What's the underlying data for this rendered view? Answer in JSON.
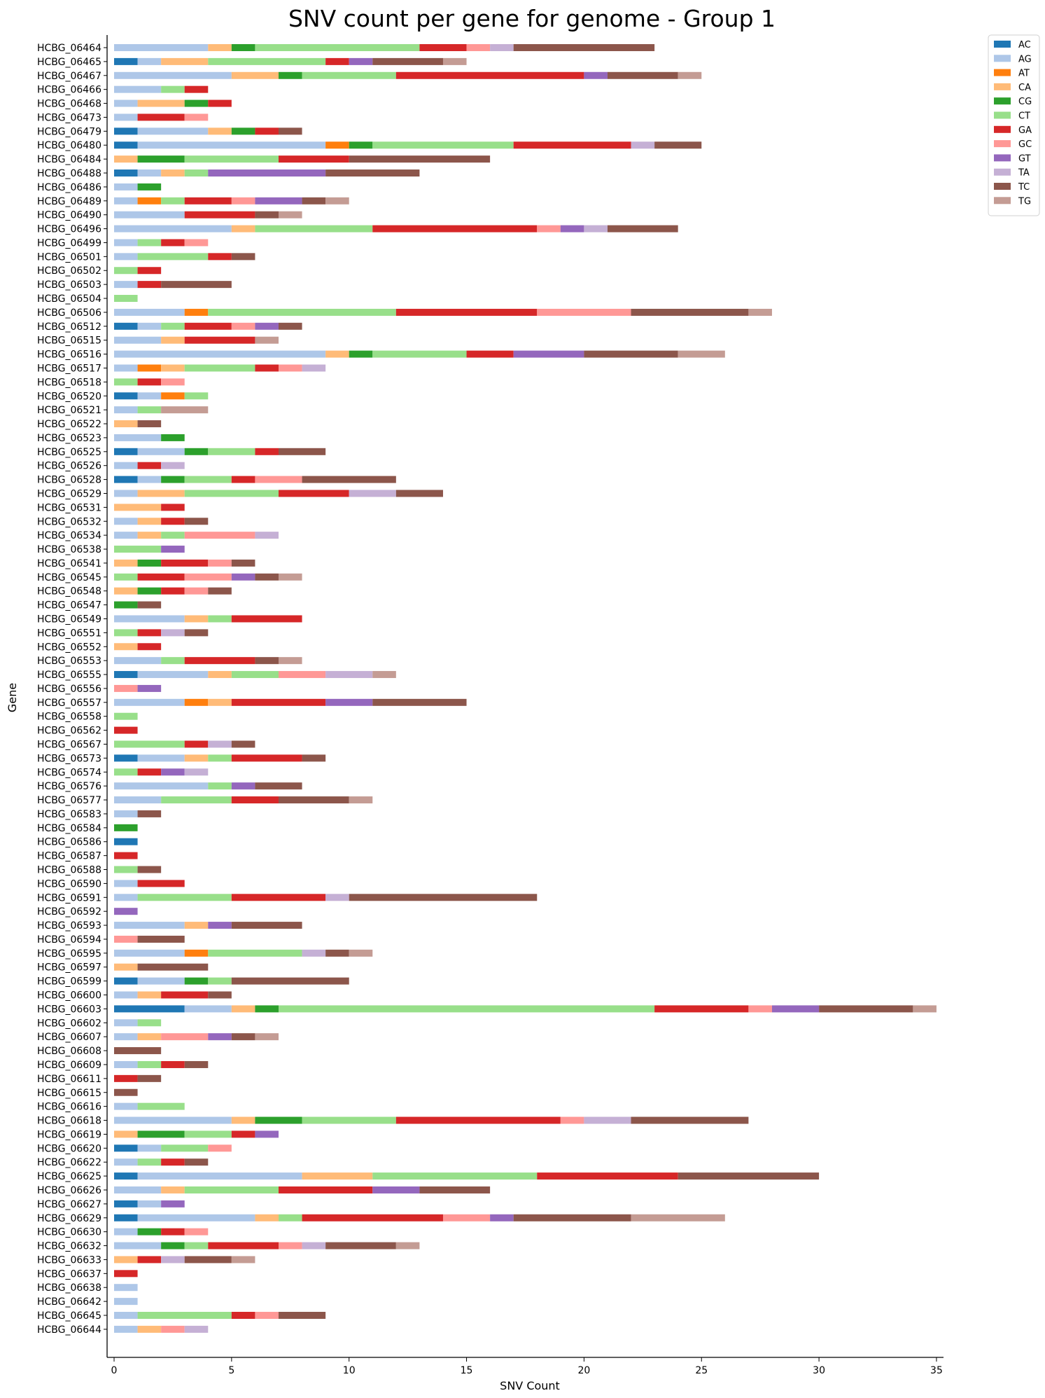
{
  "chart_data": {
    "type": "bar",
    "orientation": "horizontal",
    "stacked": true,
    "title": "SNV count per gene for genome - Group 1",
    "xlabel": "SNV Count",
    "ylabel": "Gene",
    "xlim": [
      0,
      35
    ],
    "xticks": [
      0,
      5,
      10,
      15,
      20,
      25,
      30,
      35
    ],
    "legend_position": "top-right (outside)",
    "grid": false,
    "categories": [
      "HCBG_06464",
      "HCBG_06465",
      "HCBG_06467",
      "HCBG_06466",
      "HCBG_06468",
      "HCBG_06473",
      "HCBG_06479",
      "HCBG_06480",
      "HCBG_06484",
      "HCBG_06488",
      "HCBG_06486",
      "HCBG_06489",
      "HCBG_06490",
      "HCBG_06496",
      "HCBG_06499",
      "HCBG_06501",
      "HCBG_06502",
      "HCBG_06503",
      "HCBG_06504",
      "HCBG_06506",
      "HCBG_06512",
      "HCBG_06515",
      "HCBG_06516",
      "HCBG_06517",
      "HCBG_06518",
      "HCBG_06520",
      "HCBG_06521",
      "HCBG_06522",
      "HCBG_06523",
      "HCBG_06525",
      "HCBG_06526",
      "HCBG_06528",
      "HCBG_06529",
      "HCBG_06531",
      "HCBG_06532",
      "HCBG_06534",
      "HCBG_06538",
      "HCBG_06541",
      "HCBG_06545",
      "HCBG_06548",
      "HCBG_06547",
      "HCBG_06549",
      "HCBG_06551",
      "HCBG_06552",
      "HCBG_06553",
      "HCBG_06555",
      "HCBG_06556",
      "HCBG_06557",
      "HCBG_06558",
      "HCBG_06562",
      "HCBG_06567",
      "HCBG_06573",
      "HCBG_06574",
      "HCBG_06576",
      "HCBG_06577",
      "HCBG_06583",
      "HCBG_06584",
      "HCBG_06586",
      "HCBG_06587",
      "HCBG_06588",
      "HCBG_06590",
      "HCBG_06591",
      "HCBG_06592",
      "HCBG_06593",
      "HCBG_06594",
      "HCBG_06595",
      "HCBG_06597",
      "HCBG_06599",
      "HCBG_06600",
      "HCBG_06603",
      "HCBG_06602",
      "HCBG_06607",
      "HCBG_06608",
      "HCBG_06609",
      "HCBG_06611",
      "HCBG_06615",
      "HCBG_06616",
      "HCBG_06618",
      "HCBG_06619",
      "HCBG_06620",
      "HCBG_06622",
      "HCBG_06625",
      "HCBG_06626",
      "HCBG_06627",
      "HCBG_06629",
      "HCBG_06630",
      "HCBG_06632",
      "HCBG_06633",
      "HCBG_06637",
      "HCBG_06638",
      "HCBG_06642",
      "HCBG_06645",
      "HCBG_06644"
    ],
    "series": [
      {
        "name": "AC",
        "color": "#1f77b4",
        "values": [
          0,
          1,
          0,
          0,
          0,
          0,
          1,
          1,
          0,
          1,
          0,
          0,
          0,
          0,
          0,
          0,
          0,
          0,
          0,
          0,
          1,
          0,
          0,
          0,
          0,
          1,
          0,
          0,
          0,
          1,
          0,
          1,
          0,
          0,
          0,
          0,
          0,
          0,
          0,
          0,
          0,
          0,
          0,
          0,
          0,
          1,
          0,
          0,
          0,
          0,
          0,
          1,
          0,
          0,
          0,
          0,
          0,
          1,
          0,
          0,
          0,
          0,
          0,
          0,
          0,
          0,
          0,
          1,
          0,
          3,
          0,
          0,
          0,
          0,
          0,
          0,
          0,
          0,
          0,
          1,
          0,
          1,
          0,
          1,
          1,
          0,
          0,
          0,
          0,
          0,
          0,
          0,
          0
        ]
      },
      {
        "name": "AG",
        "color": "#aec7e8",
        "values": [
          4,
          1,
          5,
          2,
          1,
          1,
          3,
          8,
          0,
          1,
          1,
          1,
          3,
          5,
          1,
          1,
          0,
          1,
          0,
          3,
          1,
          2,
          9,
          1,
          0,
          1,
          1,
          0,
          2,
          2,
          1,
          1,
          1,
          0,
          1,
          1,
          0,
          0,
          0,
          0,
          0,
          3,
          0,
          0,
          2,
          3,
          0,
          3,
          0,
          0,
          0,
          2,
          0,
          4,
          2,
          1,
          0,
          0,
          0,
          0,
          1,
          1,
          0,
          3,
          0,
          3,
          0,
          2,
          1,
          2,
          1,
          1,
          0,
          1,
          0,
          0,
          1,
          5,
          0,
          1,
          1,
          7,
          2,
          1,
          5,
          1,
          2,
          0,
          0,
          1,
          1,
          1,
          1
        ]
      },
      {
        "name": "AT",
        "color": "#ff7f0e",
        "values": [
          0,
          0,
          0,
          0,
          0,
          0,
          0,
          1,
          0,
          0,
          0,
          1,
          0,
          0,
          0,
          0,
          0,
          0,
          0,
          1,
          0,
          0,
          0,
          1,
          0,
          1,
          0,
          0,
          0,
          0,
          0,
          0,
          0,
          0,
          0,
          0,
          0,
          0,
          0,
          0,
          0,
          0,
          0,
          0,
          0,
          0,
          0,
          1,
          0,
          0,
          0,
          0,
          0,
          0,
          0,
          0,
          0,
          0,
          0,
          0,
          0,
          0,
          0,
          0,
          0,
          1,
          0,
          0,
          0,
          0,
          0,
          0,
          0,
          0,
          0,
          0,
          0,
          0,
          0,
          0,
          0,
          0,
          0,
          0,
          0,
          0,
          0,
          0,
          0,
          0,
          0,
          0,
          0
        ]
      },
      {
        "name": "CA",
        "color": "#ffbb78",
        "values": [
          1,
          2,
          2,
          0,
          2,
          0,
          1,
          0,
          1,
          1,
          0,
          0,
          0,
          1,
          0,
          0,
          0,
          0,
          0,
          0,
          0,
          1,
          1,
          1,
          0,
          0,
          0,
          1,
          0,
          0,
          0,
          0,
          2,
          2,
          1,
          1,
          0,
          1,
          0,
          1,
          0,
          1,
          0,
          1,
          0,
          1,
          0,
          1,
          0,
          0,
          0,
          1,
          0,
          0,
          0,
          0,
          0,
          0,
          0,
          0,
          0,
          0,
          0,
          1,
          0,
          0,
          1,
          0,
          1,
          1,
          0,
          1,
          0,
          0,
          0,
          0,
          0,
          1,
          1,
          0,
          0,
          3,
          1,
          0,
          1,
          0,
          0,
          1,
          0,
          0,
          0,
          0,
          1
        ]
      },
      {
        "name": "CG",
        "color": "#2ca02c",
        "values": [
          1,
          0,
          1,
          0,
          1,
          0,
          1,
          1,
          2,
          0,
          1,
          0,
          0,
          0,
          0,
          0,
          0,
          0,
          0,
          0,
          0,
          0,
          1,
          0,
          0,
          0,
          0,
          0,
          1,
          1,
          0,
          1,
          0,
          0,
          0,
          0,
          0,
          1,
          0,
          1,
          1,
          0,
          0,
          0,
          0,
          0,
          0,
          0,
          0,
          0,
          0,
          0,
          0,
          0,
          0,
          0,
          1,
          0,
          0,
          0,
          0,
          0,
          0,
          0,
          0,
          0,
          0,
          1,
          0,
          1,
          0,
          0,
          0,
          0,
          0,
          0,
          0,
          2,
          2,
          0,
          0,
          0,
          0,
          0,
          0,
          1,
          1,
          0,
          0,
          0,
          0,
          0,
          0
        ]
      },
      {
        "name": "CT",
        "color": "#98df8a",
        "values": [
          7,
          5,
          4,
          1,
          0,
          0,
          0,
          6,
          4,
          1,
          0,
          1,
          0,
          5,
          1,
          3,
          1,
          0,
          1,
          8,
          1,
          0,
          4,
          3,
          1,
          1,
          1,
          0,
          0,
          2,
          0,
          2,
          4,
          0,
          0,
          1,
          2,
          0,
          1,
          0,
          0,
          1,
          1,
          0,
          1,
          2,
          0,
          0,
          1,
          0,
          3,
          1,
          1,
          1,
          3,
          0,
          0,
          0,
          0,
          1,
          0,
          4,
          0,
          0,
          0,
          4,
          0,
          1,
          0,
          16,
          1,
          0,
          0,
          1,
          0,
          0,
          2,
          4,
          2,
          2,
          1,
          7,
          4,
          0,
          1,
          0,
          1,
          0,
          0,
          0,
          0,
          4,
          0
        ]
      },
      {
        "name": "GA",
        "color": "#d62728",
        "values": [
          2,
          1,
          8,
          1,
          1,
          2,
          1,
          5,
          3,
          0,
          0,
          2,
          3,
          7,
          1,
          1,
          1,
          1,
          0,
          6,
          2,
          3,
          2,
          1,
          1,
          0,
          0,
          0,
          0,
          1,
          1,
          1,
          3,
          1,
          1,
          0,
          0,
          2,
          2,
          1,
          0,
          3,
          1,
          1,
          3,
          0,
          0,
          4,
          0,
          1,
          1,
          3,
          1,
          0,
          2,
          0,
          0,
          0,
          1,
          0,
          2,
          4,
          0,
          0,
          0,
          0,
          0,
          0,
          2,
          4,
          0,
          0,
          0,
          1,
          1,
          0,
          0,
          7,
          1,
          0,
          1,
          6,
          4,
          0,
          6,
          1,
          3,
          1,
          1,
          0,
          0,
          1,
          0
        ]
      },
      {
        "name": "GC",
        "color": "#ff9896",
        "values": [
          1,
          0,
          0,
          0,
          0,
          1,
          0,
          0,
          0,
          0,
          0,
          1,
          0,
          1,
          1,
          0,
          0,
          0,
          0,
          4,
          1,
          0,
          0,
          1,
          1,
          0,
          0,
          0,
          0,
          0,
          0,
          2,
          0,
          0,
          0,
          3,
          0,
          1,
          2,
          1,
          0,
          0,
          0,
          0,
          0,
          2,
          1,
          0,
          0,
          0,
          0,
          0,
          0,
          0,
          0,
          0,
          0,
          0,
          0,
          0,
          0,
          0,
          0,
          0,
          1,
          0,
          0,
          0,
          0,
          1,
          0,
          2,
          0,
          0,
          0,
          0,
          0,
          1,
          0,
          1,
          0,
          0,
          0,
          0,
          2,
          1,
          1,
          0,
          0,
          0,
          0,
          1,
          1
        ]
      },
      {
        "name": "GT",
        "color": "#9467bd",
        "values": [
          0,
          1,
          1,
          0,
          0,
          0,
          0,
          0,
          0,
          5,
          0,
          2,
          0,
          1,
          0,
          0,
          0,
          0,
          0,
          0,
          1,
          0,
          3,
          0,
          0,
          0,
          0,
          0,
          0,
          0,
          0,
          0,
          0,
          0,
          0,
          0,
          1,
          0,
          1,
          0,
          0,
          0,
          0,
          0,
          0,
          0,
          1,
          2,
          0,
          0,
          0,
          0,
          1,
          1,
          0,
          0,
          0,
          0,
          0,
          0,
          0,
          0,
          1,
          1,
          0,
          0,
          0,
          0,
          0,
          2,
          0,
          1,
          0,
          0,
          0,
          0,
          0,
          0,
          1,
          0,
          0,
          0,
          2,
          1,
          1,
          0,
          0,
          0,
          0,
          0,
          0,
          0,
          0
        ]
      },
      {
        "name": "TA",
        "color": "#c5b0d5",
        "values": [
          1,
          0,
          0,
          0,
          0,
          0,
          0,
          1,
          0,
          0,
          0,
          0,
          0,
          1,
          0,
          0,
          0,
          0,
          0,
          0,
          0,
          0,
          0,
          1,
          0,
          0,
          0,
          0,
          0,
          0,
          1,
          0,
          2,
          0,
          0,
          1,
          0,
          0,
          0,
          0,
          0,
          0,
          1,
          0,
          0,
          2,
          0,
          0,
          0,
          0,
          1,
          0,
          1,
          0,
          0,
          0,
          0,
          0,
          0,
          0,
          0,
          1,
          0,
          0,
          0,
          1,
          0,
          0,
          0,
          0,
          0,
          0,
          0,
          0,
          0,
          0,
          0,
          2,
          0,
          0,
          0,
          0,
          0,
          0,
          0,
          0,
          1,
          1,
          0,
          0,
          0,
          0,
          1
        ]
      },
      {
        "name": "TC",
        "color": "#8c564b",
        "values": [
          6,
          3,
          3,
          0,
          0,
          0,
          1,
          2,
          6,
          4,
          0,
          1,
          1,
          3,
          0,
          1,
          0,
          3,
          0,
          5,
          1,
          0,
          4,
          0,
          0,
          0,
          0,
          1,
          0,
          2,
          0,
          4,
          2,
          0,
          1,
          0,
          0,
          1,
          1,
          1,
          1,
          0,
          1,
          0,
          1,
          0,
          0,
          4,
          0,
          0,
          1,
          1,
          0,
          2,
          3,
          1,
          0,
          0,
          0,
          1,
          0,
          8,
          0,
          3,
          2,
          1,
          3,
          5,
          1,
          4,
          0,
          1,
          2,
          1,
          1,
          1,
          0,
          5,
          0,
          0,
          1,
          6,
          3,
          0,
          5,
          0,
          3,
          2,
          0,
          0,
          0,
          2,
          0
        ]
      },
      {
        "name": "TG",
        "color": "#c49c94",
        "values": [
          0,
          1,
          1,
          0,
          0,
          0,
          0,
          0,
          0,
          0,
          0,
          1,
          1,
          0,
          0,
          0,
          0,
          0,
          0,
          1,
          0,
          1,
          2,
          0,
          0,
          0,
          2,
          0,
          0,
          0,
          0,
          0,
          0,
          0,
          0,
          0,
          0,
          0,
          1,
          0,
          0,
          0,
          0,
          0,
          1,
          1,
          0,
          0,
          0,
          0,
          0,
          0,
          0,
          0,
          1,
          0,
          0,
          0,
          0,
          0,
          0,
          0,
          0,
          0,
          0,
          1,
          0,
          0,
          0,
          1,
          0,
          1,
          0,
          0,
          0,
          0,
          0,
          0,
          0,
          0,
          0,
          0,
          0,
          0,
          4,
          0,
          1,
          1,
          0,
          0,
          0,
          0,
          0
        ]
      }
    ]
  }
}
